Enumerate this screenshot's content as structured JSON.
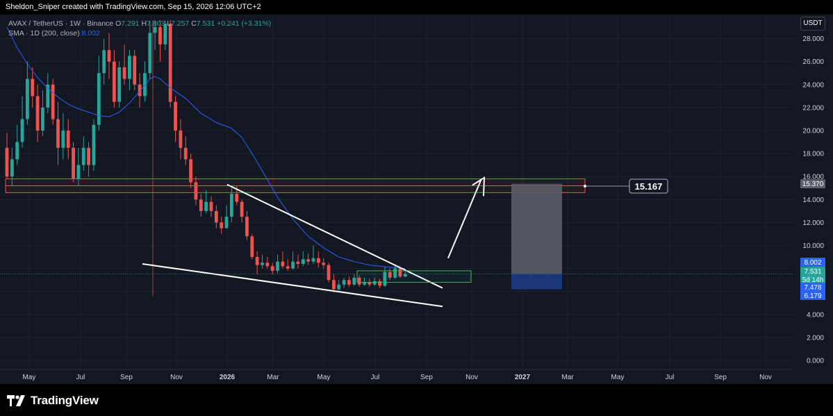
{
  "header": {
    "created_by": "Sheldon_Sniper created with TradingView.com, Sep 15, 2026 12:06 UTC+2"
  },
  "legend": {
    "symbol_line": "AVAX / TetherUS · 1W · Binance",
    "open_label": "O",
    "open": "7.291",
    "high_label": "H",
    "high": "7.803",
    "low_label": "L",
    "low": "7.257",
    "close_label": "C",
    "close": "7.531",
    "change": "+0.241 (+3.31%)",
    "sma_label": "SMA · 1D (200, close)",
    "sma_value": "8.002"
  },
  "currency_badge": "USDT",
  "brand": {
    "name": "TradingView"
  },
  "colors": {
    "bg": "#131722",
    "up": "#26a69a",
    "down": "#ef5350",
    "sma": "#2962ff",
    "grid": "#1e222d"
  },
  "chart_data": {
    "type": "candlestick",
    "interval": "1W",
    "ylim": [
      -0.8,
      29.6
    ],
    "y_ticks": [
      "0.000",
      "2.000",
      "4.000",
      "6.000",
      "8.000",
      "10.000",
      "12.000",
      "14.000",
      "16.000",
      "18.000",
      "20.000",
      "22.000",
      "24.000",
      "26.000",
      "28.000"
    ],
    "x_ticks": [
      "May",
      "Jul",
      "Sep",
      "Nov",
      "2026",
      "Mar",
      "May",
      "Jul",
      "Sep",
      "Nov",
      "2027",
      "Mar",
      "May",
      "Jul",
      "Sep",
      "Nov"
    ],
    "candles": [
      [
        18.5,
        16.0,
        19.8,
        15.8
      ],
      [
        16.0,
        17.5,
        18.5,
        15.2
      ],
      [
        17.5,
        19.0,
        20.5,
        17.0
      ],
      [
        19.0,
        21.0,
        23.0,
        18.5
      ],
      [
        21.0,
        24.5,
        26.0,
        20.5
      ],
      [
        24.5,
        23.0,
        25.5,
        22.0
      ],
      [
        23.0,
        20.0,
        24.0,
        19.0
      ],
      [
        20.0,
        22.0,
        23.5,
        19.5
      ],
      [
        22.0,
        24.0,
        25.0,
        21.5
      ],
      [
        24.0,
        21.0,
        24.5,
        20.5
      ],
      [
        21.0,
        18.5,
        22.5,
        17.0
      ],
      [
        18.5,
        20.0,
        21.5,
        17.5
      ],
      [
        20.0,
        18.5,
        21.0,
        17.5
      ],
      [
        18.5,
        15.8,
        19.0,
        15.5
      ],
      [
        15.8,
        17.0,
        18.5,
        15.2
      ],
      [
        17.0,
        18.5,
        19.5,
        16.5
      ],
      [
        18.5,
        17.0,
        19.0,
        16.0
      ],
      [
        17.0,
        20.5,
        21.0,
        16.5
      ],
      [
        20.5,
        25.0,
        26.5,
        20.0
      ],
      [
        25.0,
        27.0,
        28.0,
        24.0
      ],
      [
        27.0,
        26.0,
        28.5,
        24.5
      ],
      [
        26.0,
        22.5,
        27.0,
        22.0
      ],
      [
        22.5,
        25.5,
        26.0,
        22.0
      ],
      [
        25.5,
        24.5,
        27.5,
        24.0
      ],
      [
        24.5,
        26.5,
        27.0,
        23.5
      ],
      [
        26.5,
        24.0,
        27.0,
        23.5
      ],
      [
        24.0,
        23.0,
        25.0,
        22.0
      ],
      [
        23.0,
        25.0,
        26.0,
        22.5
      ],
      [
        25.0,
        28.5,
        29.5,
        24.5
      ],
      [
        28.5,
        29.0,
        29.6,
        27.0
      ],
      [
        29.0,
        27.5,
        29.6,
        26.0
      ],
      [
        27.5,
        29.3,
        29.6,
        27.0
      ],
      [
        29.3,
        22.5,
        29.6,
        22.0
      ],
      [
        22.5,
        20.0,
        23.0,
        19.0
      ],
      [
        20.0,
        18.5,
        21.0,
        17.5
      ],
      [
        18.5,
        17.5,
        19.5,
        17.0
      ],
      [
        17.5,
        15.5,
        18.0,
        15.0
      ],
      [
        15.5,
        14.0,
        16.0,
        13.5
      ],
      [
        14.0,
        13.0,
        14.5,
        12.5
      ],
      [
        13.0,
        13.8,
        14.8,
        12.8
      ],
      [
        13.8,
        13.0,
        14.3,
        12.5
      ],
      [
        13.0,
        12.0,
        13.5,
        11.5
      ],
      [
        12.0,
        11.5,
        12.5,
        11.0
      ],
      [
        11.5,
        12.5,
        13.5,
        11.5
      ],
      [
        12.5,
        14.5,
        15.0,
        12.0
      ],
      [
        14.5,
        13.8,
        15.2,
        13.5
      ],
      [
        13.8,
        12.5,
        14.0,
        12.0
      ],
      [
        12.5,
        10.8,
        13.0,
        10.5
      ],
      [
        10.8,
        9.0,
        11.0,
        8.8
      ],
      [
        9.0,
        8.3,
        9.5,
        7.5
      ],
      [
        8.3,
        8.5,
        9.2,
        8.0
      ],
      [
        8.5,
        8.2,
        9.0,
        8.0
      ],
      [
        8.2,
        7.8,
        8.5,
        7.5
      ],
      [
        7.8,
        8.6,
        9.2,
        7.6
      ],
      [
        8.6,
        8.2,
        9.5,
        8.0
      ],
      [
        8.2,
        8.0,
        8.8,
        7.8
      ],
      [
        8.0,
        8.6,
        9.5,
        7.9
      ],
      [
        8.6,
        8.4,
        9.2,
        8.0
      ],
      [
        8.4,
        8.8,
        9.5,
        8.2
      ],
      [
        8.8,
        8.6,
        9.3,
        8.3
      ],
      [
        8.6,
        8.9,
        10.0,
        8.4
      ],
      [
        8.9,
        8.5,
        9.5,
        8.1
      ],
      [
        8.5,
        8.3,
        8.9,
        8.0
      ],
      [
        8.3,
        7.0,
        8.5,
        6.8
      ],
      [
        7.0,
        6.2,
        7.5,
        5.9
      ],
      [
        6.2,
        6.6,
        7.0,
        6.0
      ],
      [
        6.6,
        7.0,
        7.2,
        6.3
      ],
      [
        7.0,
        6.6,
        7.3,
        6.4
      ],
      [
        6.6,
        7.2,
        7.5,
        6.5
      ],
      [
        7.2,
        6.6,
        7.4,
        6.4
      ],
      [
        6.6,
        6.8,
        7.2,
        6.5
      ],
      [
        6.8,
        6.6,
        7.1,
        6.4
      ],
      [
        6.6,
        6.9,
        7.2,
        6.5
      ],
      [
        6.9,
        6.5,
        7.1,
        6.3
      ],
      [
        6.5,
        7.7,
        8.2,
        6.4
      ],
      [
        7.7,
        7.2,
        8.0,
        7.0
      ],
      [
        7.2,
        8.0,
        8.3,
        7.1
      ],
      [
        8.0,
        7.3,
        8.2,
        7.2
      ],
      [
        7.291,
        7.531,
        7.803,
        7.257
      ]
    ],
    "sma": [
      [
        0,
        29.0
      ],
      [
        2,
        27.2
      ],
      [
        4,
        25.8
      ],
      [
        6,
        24.6
      ],
      [
        8,
        23.7
      ],
      [
        10,
        22.9
      ],
      [
        12,
        22.3
      ],
      [
        14,
        21.9
      ],
      [
        16,
        21.6
      ],
      [
        18,
        21.3
      ],
      [
        20,
        21.2
      ],
      [
        22,
        21.6
      ],
      [
        24,
        22.4
      ],
      [
        26,
        23.4
      ],
      [
        28,
        24.5
      ],
      [
        29,
        24.7
      ],
      [
        30,
        24.5
      ],
      [
        31,
        24.1
      ],
      [
        33,
        23.4
      ],
      [
        35,
        22.8
      ],
      [
        38,
        21.5
      ],
      [
        41,
        20.7
      ],
      [
        44,
        20.2
      ],
      [
        46,
        19.4
      ],
      [
        48,
        18.0
      ],
      [
        50,
        16.5
      ],
      [
        53,
        14.2
      ],
      [
        56,
        12.3
      ],
      [
        59,
        10.8
      ],
      [
        62,
        9.8
      ],
      [
        65,
        9.0
      ],
      [
        68,
        8.6
      ],
      [
        71,
        8.3
      ],
      [
        74,
        8.15
      ],
      [
        78,
        8.002
      ]
    ],
    "price_scale_labels": [
      "15.370",
      "8.002",
      "7.531",
      "5d 14h",
      "7.478",
      "6.179"
    ],
    "annotations": {
      "callout": "15.167"
    }
  }
}
